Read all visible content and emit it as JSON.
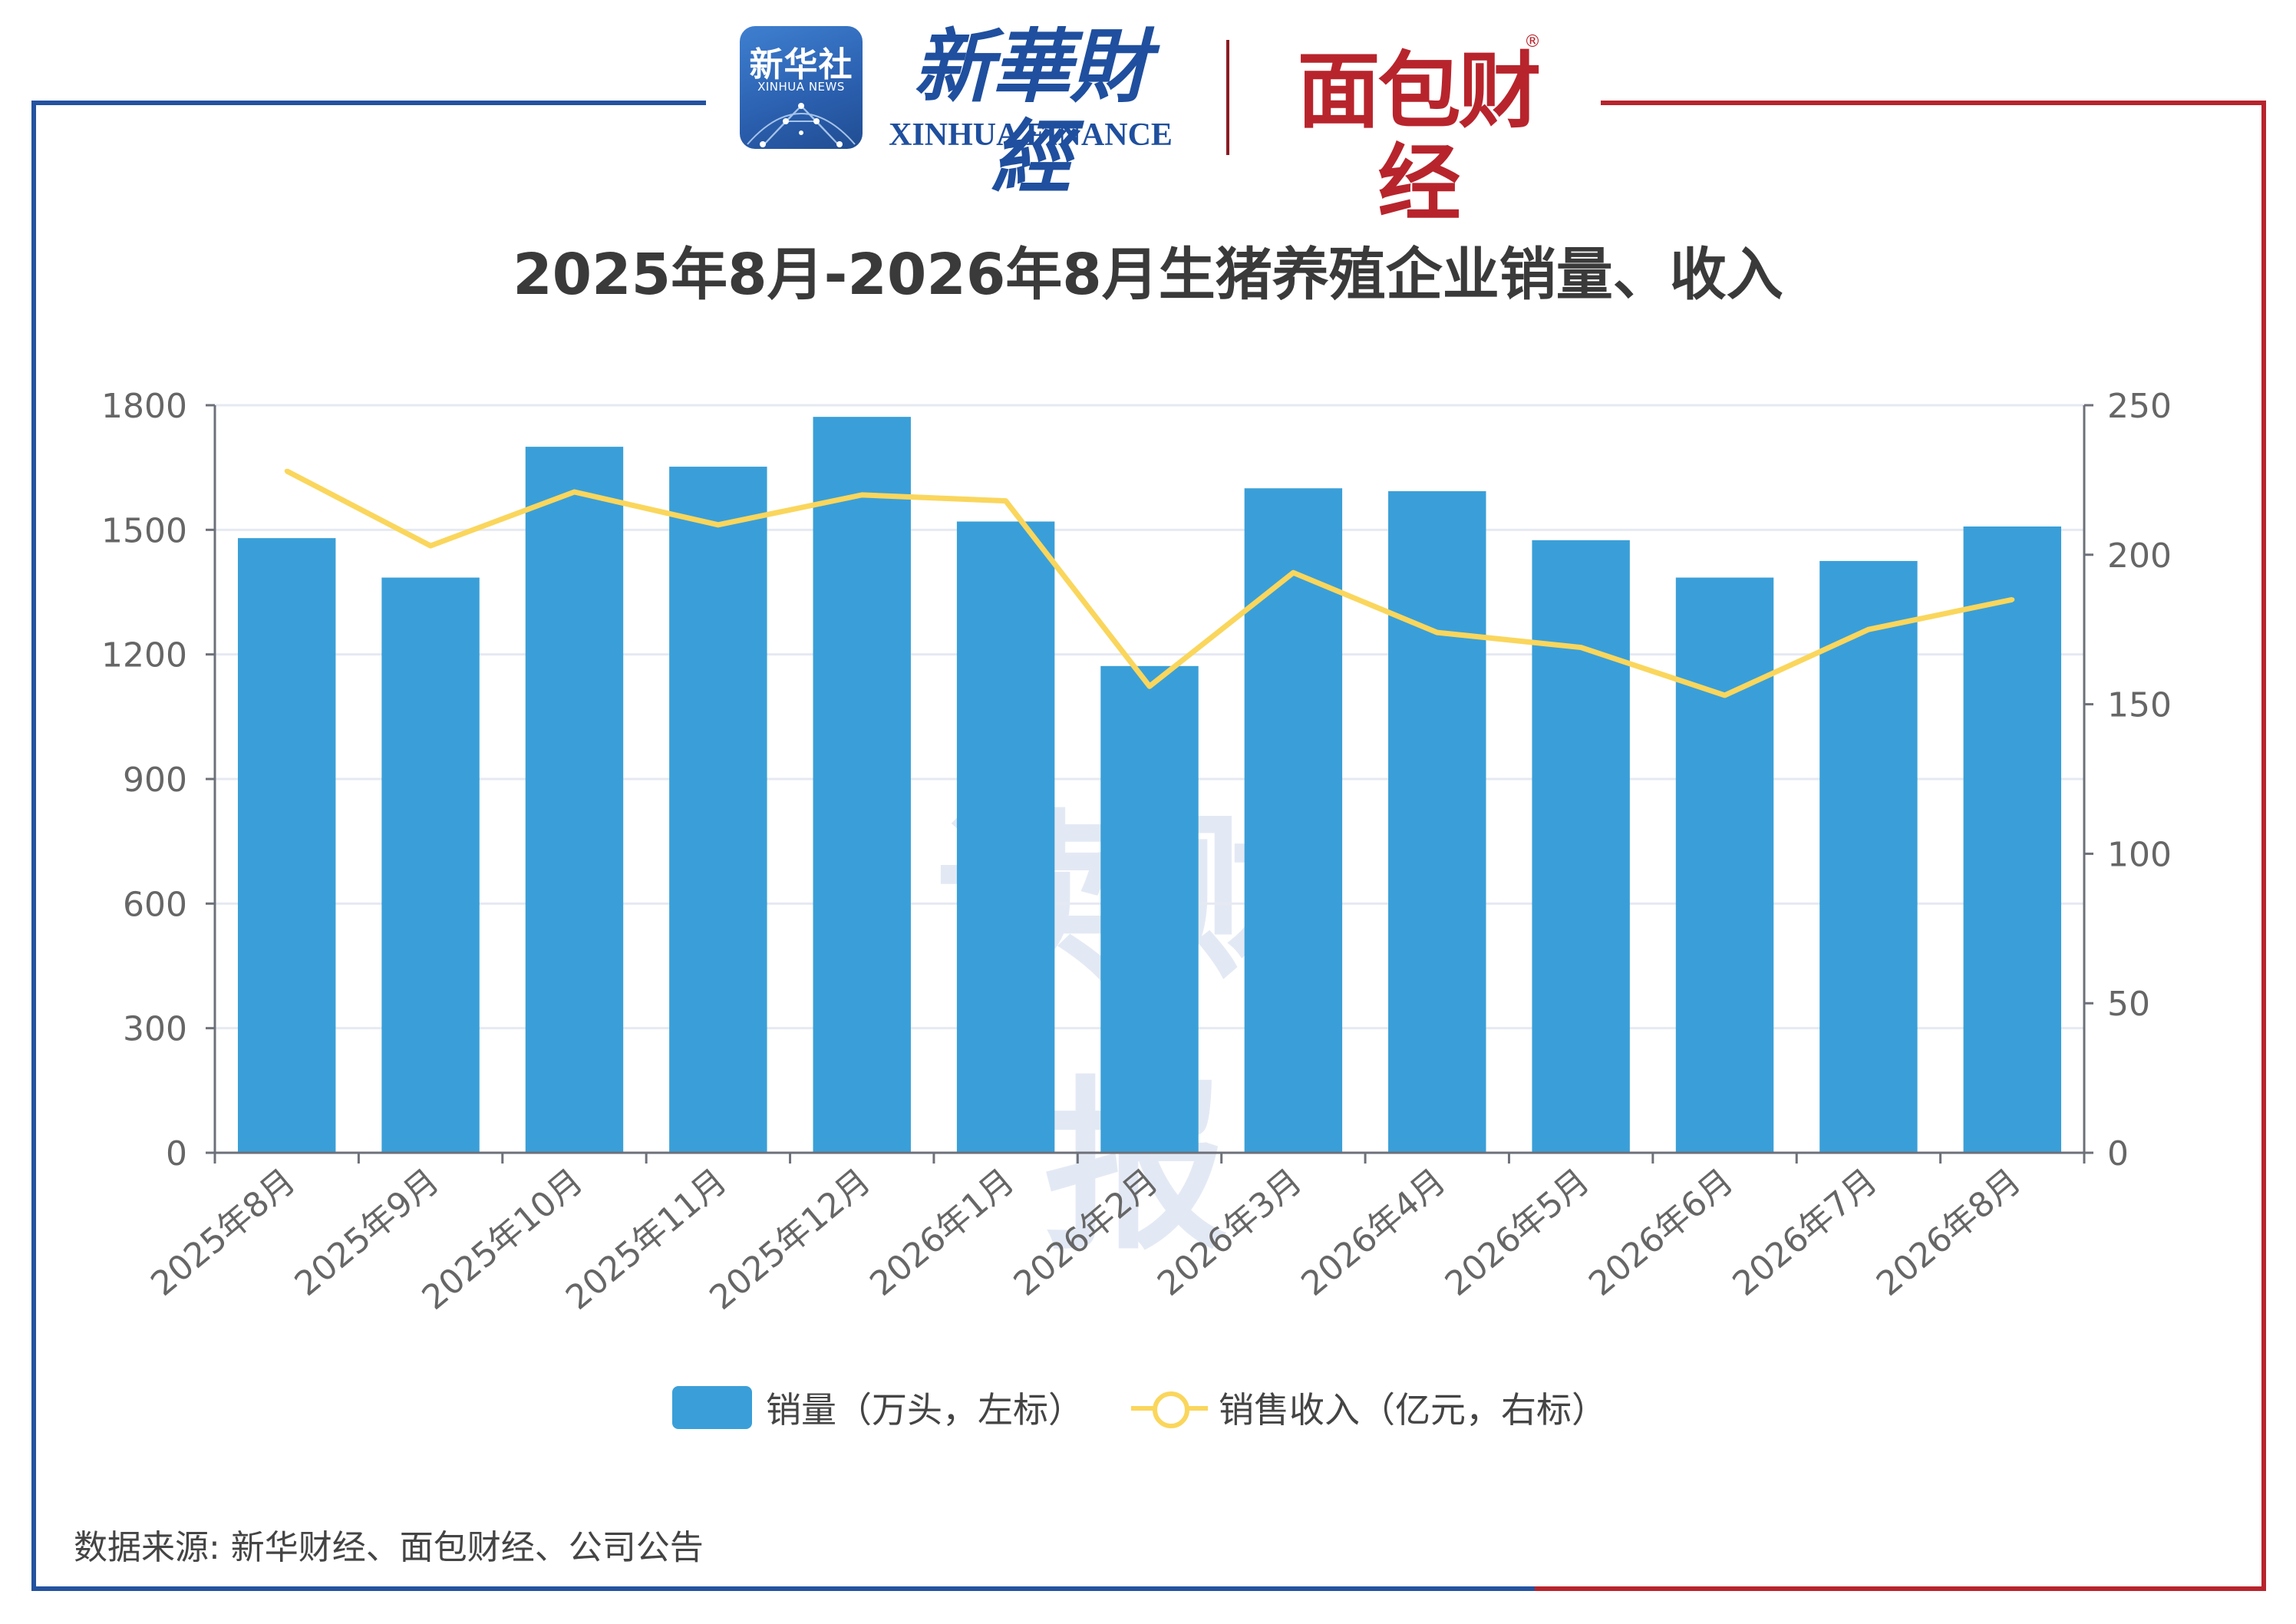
{
  "header": {
    "xinhua_badge_cn": "新华社",
    "xinhua_badge_en": "XINHUA NEWS",
    "xinhua_finance_cn": "新華財經",
    "xinhua_finance_en": "XINHUA FINANCE",
    "mianbao_cn": "面包财经",
    "mianbao_reg": "®"
  },
  "frame_colors": {
    "left": "#2452a0",
    "right": "#b8242c"
  },
  "watermark": "读财报",
  "source": "数据来源: 新华财经、面包财经、公司公告",
  "chart_data": {
    "type": "bar",
    "title": "2025年8月-2026年8月生猪养殖企业销量、收入",
    "categories": [
      "2025年8月",
      "2025年9月",
      "2025年10月",
      "2025年11月",
      "2025年12月",
      "2026年1月",
      "2026年2月",
      "2026年3月",
      "2026年4月",
      "2026年5月",
      "2026年6月",
      "2026年7月",
      "2026年8月"
    ],
    "series": [
      {
        "name": "销量（万头，左标）",
        "type": "bar",
        "axis": "left",
        "color": "#3a9fd8",
        "values": [
          1480,
          1385,
          1700,
          1652,
          1772,
          1520,
          1172,
          1600,
          1593,
          1475,
          1385,
          1425,
          1508
        ]
      },
      {
        "name": "销售收入（亿元，右标）",
        "type": "line",
        "axis": "right",
        "color": "#fad65c",
        "values": [
          228,
          203,
          221,
          210,
          220,
          218,
          156,
          194,
          174,
          169,
          153,
          175,
          185
        ]
      }
    ],
    "y_left": {
      "min": 0,
      "max": 1800,
      "ticks": [
        "0",
        "300",
        "600",
        "900",
        "1200",
        "1500",
        "1800"
      ]
    },
    "y_right": {
      "min": 0,
      "max": 250,
      "ticks": [
        "0",
        "50",
        "100",
        "150",
        "200",
        "250"
      ]
    },
    "grid": true,
    "legend_position": "bottom"
  }
}
